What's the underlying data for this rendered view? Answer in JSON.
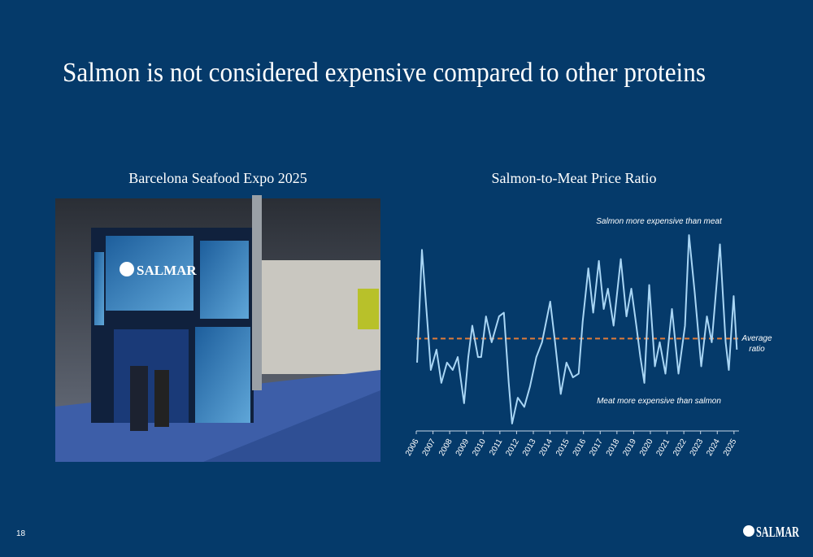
{
  "header": {
    "title": "Salmon is not considered expensive compared to other proteins"
  },
  "photo": {
    "caption": "Barcelona Seafood Expo 2025",
    "sign": "SALMAR"
  },
  "chart_data": {
    "type": "line",
    "title": "Salmon-to-Meat Price Ratio",
    "annotations": {
      "top": "Salmon more expensive than meat",
      "bottom": "Meat more expensive than salmon",
      "average": [
        "Average",
        "ratio"
      ]
    },
    "x": [
      2006.05,
      2006.34,
      2006.68,
      2006.87,
      2007.21,
      2007.5,
      2007.84,
      2008.18,
      2008.48,
      2008.86,
      2009.11,
      2009.35,
      2009.69,
      2009.88,
      2010.17,
      2010.51,
      2010.95,
      2011.24,
      2011.53,
      2011.73,
      2012.07,
      2012.46,
      2012.8,
      2013.18,
      2013.52,
      2014.01,
      2014.3,
      2014.64,
      2014.98,
      2015.37,
      2015.71,
      2015.95,
      2016.29,
      2016.58,
      2016.92,
      2017.21,
      2017.46,
      2017.8,
      2018.23,
      2018.57,
      2018.86,
      2019.16,
      2019.4,
      2019.64,
      2019.93,
      2020.27,
      2020.56,
      2020.9,
      2021.29,
      2021.68,
      2022.07,
      2022.31,
      2022.65,
      2023.04,
      2023.38,
      2023.67,
      2024.16,
      2024.5,
      2024.69,
      2024.98,
      2025.17
    ],
    "series": [
      {
        "name": "Salmon-to-Meat Price Ratio",
        "color": "#a9d6f5",
        "values": [
          0.87,
          1.48,
          1.07,
          0.83,
          0.94,
          0.76,
          0.87,
          0.83,
          0.9,
          0.65,
          0.9,
          1.07,
          0.9,
          0.9,
          1.12,
          0.98,
          1.12,
          1.14,
          0.76,
          0.54,
          0.68,
          0.63,
          0.74,
          0.9,
          0.98,
          1.2,
          0.98,
          0.7,
          0.87,
          0.79,
          0.81,
          1.09,
          1.38,
          1.14,
          1.42,
          1.16,
          1.27,
          1.07,
          1.43,
          1.12,
          1.27,
          1.07,
          0.9,
          0.76,
          1.29,
          0.85,
          0.98,
          0.81,
          1.16,
          0.81,
          1.07,
          1.56,
          1.25,
          0.85,
          1.12,
          0.98,
          1.51,
          0.98,
          0.83,
          1.23,
          0.94
        ]
      }
    ],
    "average": 1.0,
    "average_color": "#e07b39",
    "xlim": [
      2006,
      2025.3
    ],
    "xticks": [
      2006,
      2007,
      2008,
      2009,
      2010,
      2011,
      2012,
      2013,
      2014,
      2015,
      2016,
      2017,
      2018,
      2019,
      2020,
      2021,
      2022,
      2023,
      2024,
      2025
    ],
    "ylim": [
      0.5,
      1.6
    ]
  },
  "footer": {
    "page": "18",
    "logo": "SALMAR"
  }
}
